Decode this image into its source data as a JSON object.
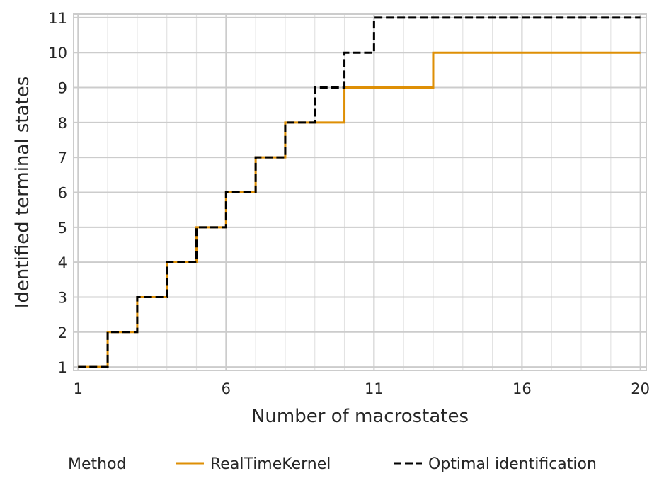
{
  "chart_data": {
    "type": "line",
    "step": "post",
    "title": "",
    "xlabel": "Number of macrostates",
    "ylabel": "Identified terminal states",
    "xlim": [
      0.85,
      20.2
    ],
    "ylim": [
      0.9,
      11.1
    ],
    "xticks_major": [
      1,
      6,
      11,
      16,
      20
    ],
    "xticks_minor": [
      2,
      3,
      4,
      5,
      7,
      8,
      9,
      10,
      12,
      13,
      14,
      15,
      17,
      18,
      19
    ],
    "yticks": [
      1,
      2,
      3,
      4,
      5,
      6,
      7,
      8,
      9,
      10,
      11
    ],
    "grid": true,
    "legend": {
      "title": "Method",
      "placement": "bottom-center"
    },
    "x": [
      1,
      2,
      3,
      4,
      5,
      6,
      7,
      8,
      9,
      10,
      11,
      12,
      13,
      14,
      15,
      16,
      17,
      18,
      19,
      20
    ],
    "series": [
      {
        "name": "RealTimeKernel",
        "color": "#de8f05",
        "dash": "solid",
        "values": [
          1,
          2,
          3,
          4,
          5,
          6,
          7,
          8,
          8,
          9,
          9,
          9,
          10,
          10,
          10,
          10,
          10,
          10,
          10,
          10
        ]
      },
      {
        "name": "Optimal identification",
        "color": "#000000",
        "dash": "dashed",
        "values": [
          1,
          2,
          3,
          4,
          5,
          6,
          7,
          8,
          9,
          10,
          11,
          11,
          11,
          11,
          11,
          11,
          11,
          11,
          11,
          11
        ]
      }
    ]
  }
}
